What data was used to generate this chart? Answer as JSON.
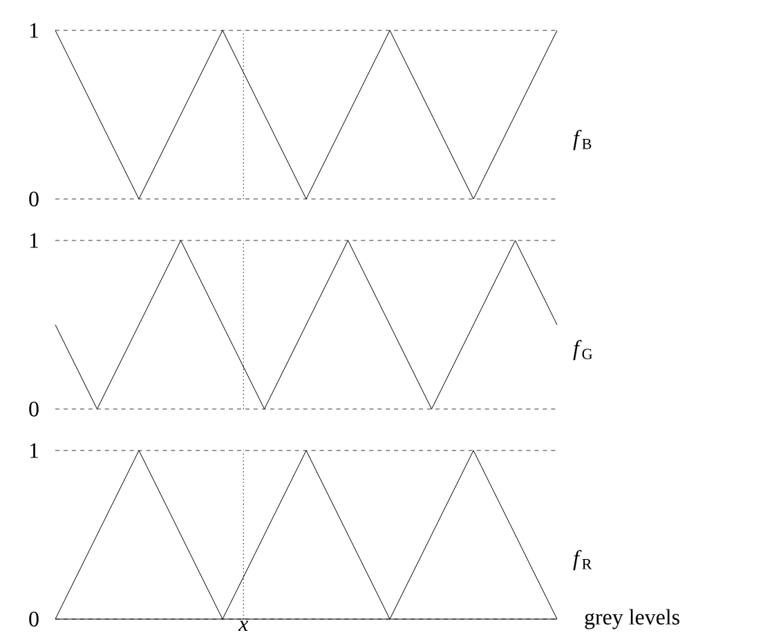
{
  "chart_data": [
    {
      "type": "line",
      "ylim": [
        0,
        1
      ],
      "yticks": [
        0,
        1
      ],
      "tick_labels": "y",
      "grid": "y",
      "categories": [
        null,
        null,
        null,
        null,
        null,
        null,
        null,
        null,
        null,
        null,
        null,
        null,
        null
      ],
      "series": [
        {
          "name": "*f*$_{B}$",
          "color": "#000000",
          "values": [
            1,
            0.5,
            0,
            0.5,
            1,
            0.5,
            0,
            0.5,
            1,
            0.5,
            0,
            0.5,
            1
          ]
        }
      ]
    },
    {
      "type": "line",
      "ylim": [
        0,
        1
      ],
      "yticks": [
        0,
        1
      ],
      "tick_labels": "y",
      "grid": "y",
      "categories": [
        null,
        null,
        null,
        null,
        null,
        null,
        null,
        null,
        null,
        null,
        null,
        null,
        null
      ],
      "series": [
        {
          "name": "*f*$_{G}$",
          "color": "#000000",
          "values": [
            0.5,
            0,
            0.5,
            1,
            0.5,
            0,
            0.5,
            1,
            0.5,
            0,
            0.5,
            1,
            0.5
          ]
        }
      ]
    },
    {
      "type": "line",
      "ylim": [
        0,
        1
      ],
      "yticks": [
        0,
        1
      ],
      "tick_labels": "y",
      "grid": "y",
      "xlabel": "grey levels",
      "annotations": [
        "*x*"
      ],
      "categories": [
        null,
        null,
        null,
        null,
        null,
        null,
        null,
        null,
        null,
        null,
        null,
        null,
        null
      ],
      "series": [
        {
          "name": "*f*$_{R}$",
          "color": "#000000",
          "values": [
            0,
            0.5,
            1,
            0.5,
            0,
            0.5,
            1,
            0.5,
            0,
            0.5,
            1,
            0.5,
            0
          ]
        }
      ]
    }
  ]
}
